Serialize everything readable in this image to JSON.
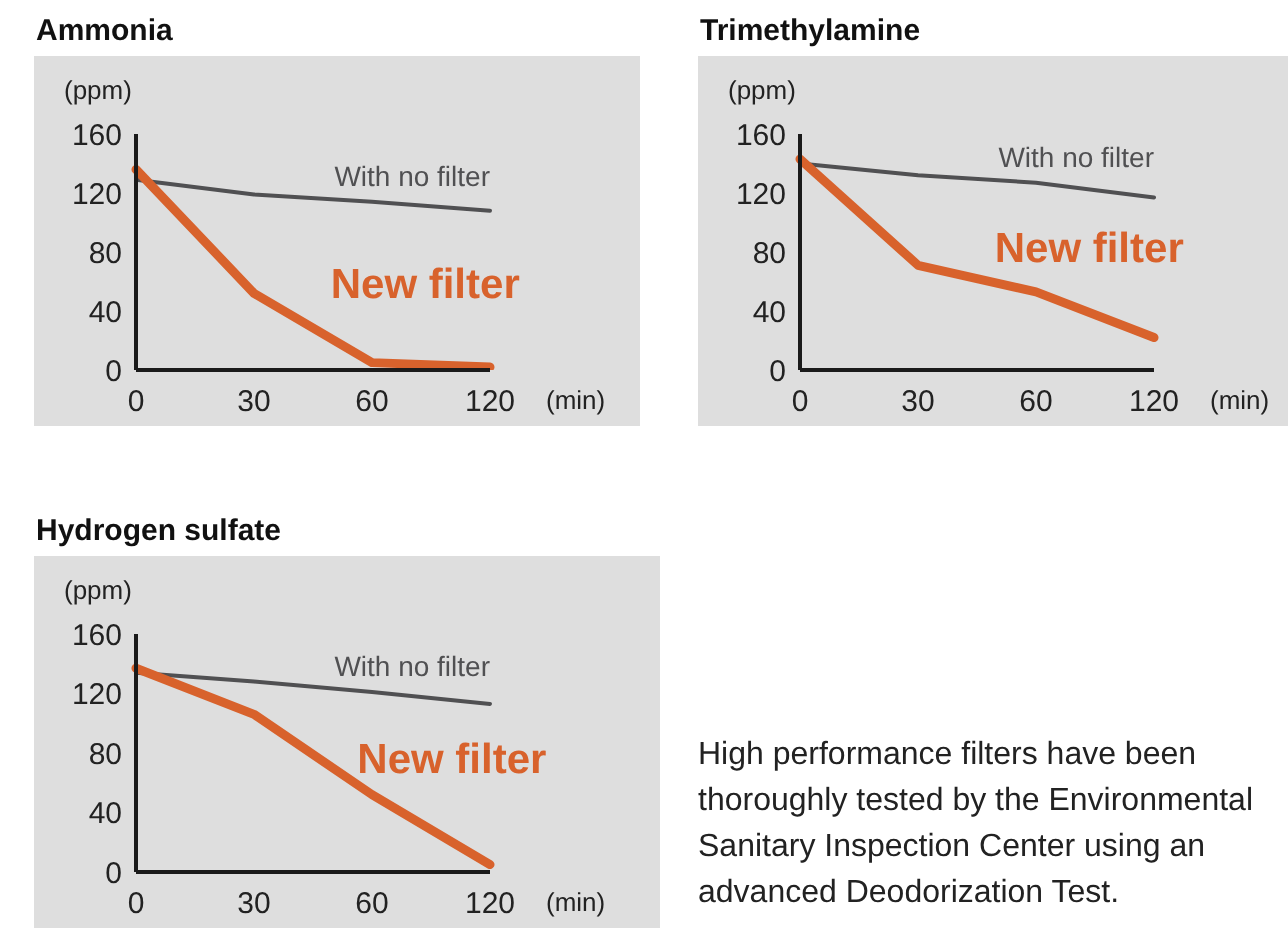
{
  "chart_data": [
    {
      "type": "line",
      "title": "Ammonia",
      "xlabel": "(min)",
      "ylabel": "(ppm)",
      "categories": [
        "0",
        "30",
        "60",
        "120"
      ],
      "series": [
        {
          "name": "With no filter",
          "color": "#505052",
          "values": [
            129,
            119,
            114,
            108
          ]
        },
        {
          "name": "New filter",
          "color": "#d8622c",
          "values": [
            136,
            52,
            5,
            2
          ]
        }
      ],
      "ylim": [
        0,
        160
      ],
      "yticks": [
        0,
        40,
        80,
        120,
        160
      ]
    },
    {
      "type": "line",
      "title": "Trimethylamine",
      "xlabel": "(min)",
      "ylabel": "(ppm)",
      "categories": [
        "0",
        "30",
        "60",
        "120"
      ],
      "series": [
        {
          "name": "With no filter",
          "color": "#505052",
          "values": [
            140,
            132,
            127,
            117
          ]
        },
        {
          "name": "New filter",
          "color": "#d8622c",
          "values": [
            143,
            71,
            53,
            22
          ]
        }
      ],
      "ylim": [
        0,
        160
      ],
      "yticks": [
        0,
        40,
        80,
        120,
        160
      ]
    },
    {
      "type": "line",
      "title": "Hydrogen sulfate",
      "xlabel": "(min)",
      "ylabel": "(ppm)",
      "categories": [
        "0",
        "30",
        "60",
        "120"
      ],
      "series": [
        {
          "name": "With no filter",
          "color": "#505052",
          "values": [
            134,
            128,
            121,
            113
          ]
        },
        {
          "name": "New filter",
          "color": "#d8622c",
          "values": [
            137,
            106,
            52,
            5
          ]
        }
      ],
      "ylim": [
        0,
        160
      ],
      "yticks": [
        0,
        40,
        80,
        120,
        160
      ]
    },
    {
      "type": "other",
      "annotations": [
        "High performance filters have been thoroughly tested by the Environmental Sanitary Inspection Center using an advanced Deodorization Test."
      ]
    }
  ]
}
